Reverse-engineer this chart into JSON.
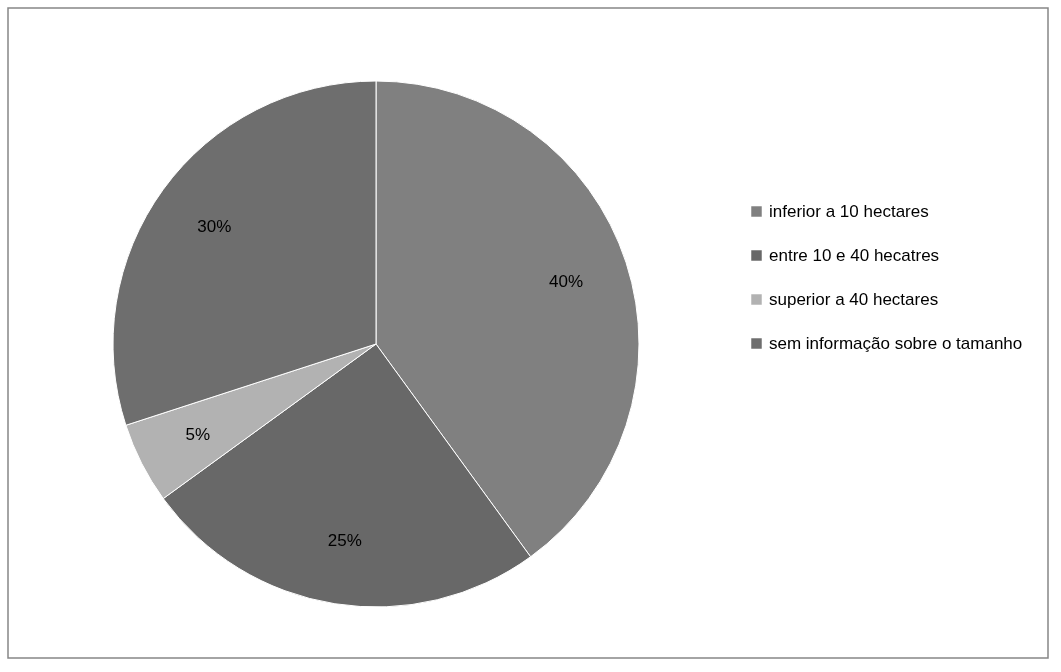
{
  "chart_data": {
    "type": "pie",
    "categories": [
      "inferior a 10 hectares",
      "entre 10 e 40 hecatres",
      "superior a 40 hectares",
      "sem informação sobre o tamanho"
    ],
    "values": [
      40,
      25,
      5,
      30
    ],
    "value_labels": [
      "40%",
      "25%",
      "5%",
      "30%"
    ],
    "colors": [
      "#808080",
      "#686868",
      "#b2b2b2",
      "#6e6e6e"
    ],
    "legend": "right"
  }
}
